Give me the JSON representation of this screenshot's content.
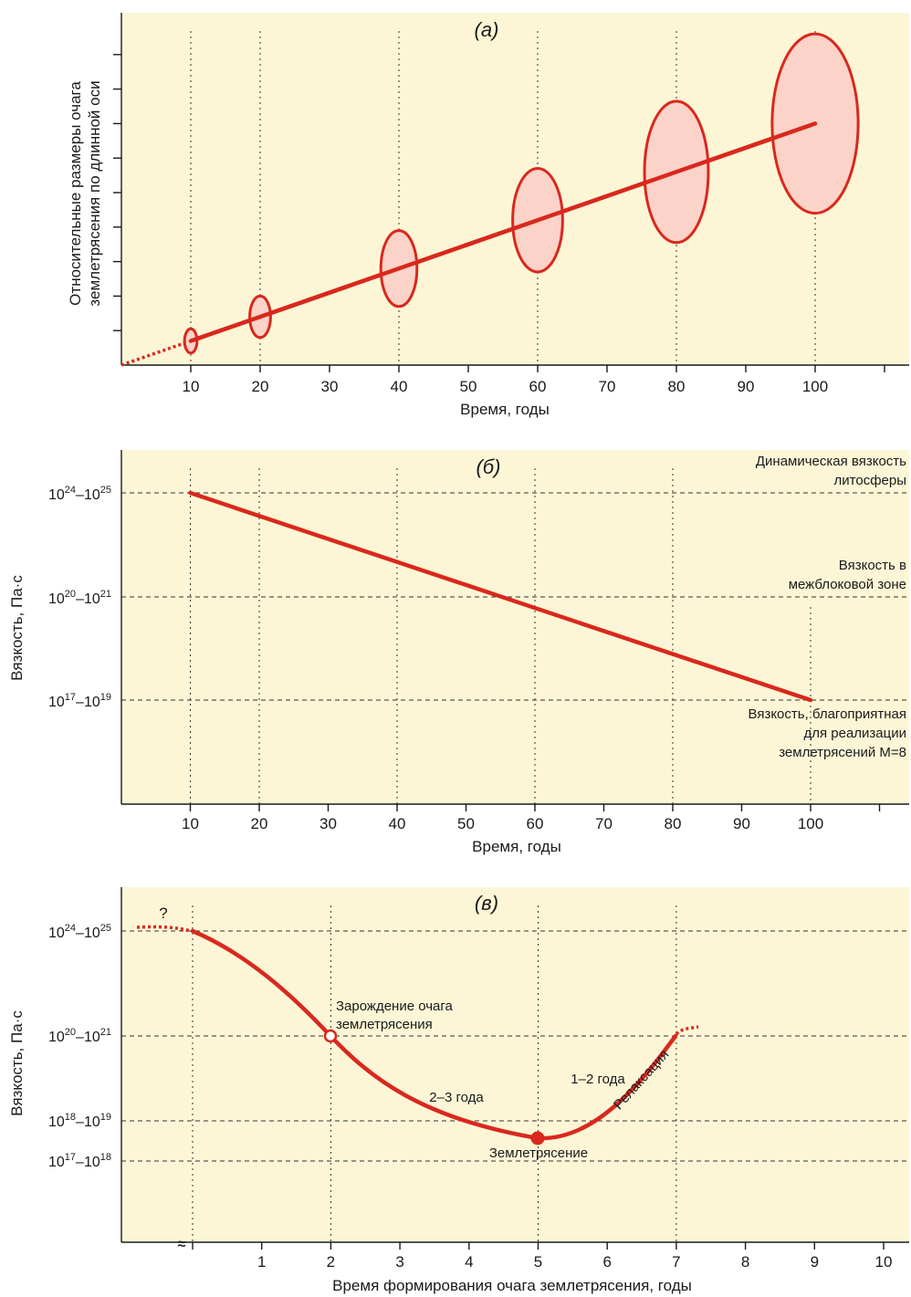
{
  "chart_data": [
    {
      "type": "line",
      "title": "(а)",
      "xlabel": "Время, годы",
      "ylabel_lines": [
        "Относительные размеры очага",
        "землетрясения по длинной оси"
      ],
      "x_ticks": [
        10,
        20,
        30,
        40,
        50,
        60,
        70,
        80,
        90,
        100
      ],
      "xlim": [
        0,
        110
      ],
      "y_ticks_count": 9,
      "grid_x": [
        10,
        20,
        40,
        60,
        80,
        100
      ],
      "series": [
        {
          "x": [
            10,
            100
          ],
          "y": [
            0.6,
            6.9
          ],
          "style": "solid",
          "color": "#d9281e"
        },
        {
          "x": [
            0,
            10
          ],
          "y": [
            -0.1,
            0.6
          ],
          "style": "dotted",
          "color": "#d9281e"
        }
      ],
      "ellipses": [
        {
          "x": 10,
          "y": 0.6,
          "rx": 0.9,
          "ry": 0.35
        },
        {
          "x": 20,
          "y": 1.3,
          "rx": 1.5,
          "ry": 0.6
        },
        {
          "x": 40,
          "y": 2.7,
          "rx": 2.6,
          "ry": 1.1
        },
        {
          "x": 60,
          "y": 4.1,
          "rx": 3.6,
          "ry": 1.5
        },
        {
          "x": 80,
          "y": 5.5,
          "rx": 4.6,
          "ry": 2.05
        },
        {
          "x": 100,
          "y": 6.9,
          "rx": 6.2,
          "ry": 2.6
        }
      ],
      "background": "#fdf6d6"
    },
    {
      "type": "line",
      "title": "(б)",
      "xlabel": "Время, годы",
      "ylabel": "Вязкость, Па·с",
      "x_ticks": [
        10,
        20,
        30,
        40,
        50,
        60,
        70,
        80,
        90,
        100
      ],
      "xlim": [
        0,
        110
      ],
      "levels": [
        {
          "base": "10",
          "exp1": "24",
          "mid": "–10",
          "exp2": "25",
          "lines": [
            "Динамическая вязкость",
            "литосферы"
          ]
        },
        {
          "base": "10",
          "exp1": "20",
          "mid": "–10",
          "exp2": "21",
          "lines": [
            "Вязкость в",
            "межблоковой зоне"
          ]
        },
        {
          "base": "10",
          "exp1": "17",
          "mid": "–10",
          "exp2": "19",
          "lines": [
            "Вязкость, благоприятная",
            "для реализации",
            "землетрясений М=8"
          ]
        }
      ],
      "grid_x": [
        10,
        20,
        40,
        60,
        80,
        100
      ],
      "series": [
        {
          "x": [
            10,
            100
          ],
          "level": [
            0,
            2
          ],
          "style": "solid",
          "color": "#d9281e"
        }
      ],
      "background": "#fdf6d6"
    },
    {
      "type": "line",
      "title": "(в)",
      "xlabel": "Время формирования очага землетрясения, годы",
      "ylabel": "Вязкость, Па·с",
      "x_ticks": [
        1,
        2,
        3,
        4,
        5,
        6,
        7,
        8,
        9,
        10
      ],
      "xlim": [
        -1,
        10.3
      ],
      "axis_break": "≈",
      "levels": [
        {
          "base": "10",
          "exp1": "24",
          "mid": "–10",
          "exp2": "25"
        },
        {
          "base": "10",
          "exp1": "20",
          "mid": "–10",
          "exp2": "21"
        },
        {
          "base": "10",
          "exp1": "18",
          "mid": "–10",
          "exp2": "19"
        },
        {
          "base": "10",
          "exp1": "17",
          "mid": "–10",
          "exp2": "18"
        }
      ],
      "grid_x": [
        0,
        2,
        5,
        7
      ],
      "points": [
        {
          "x": 2,
          "label_lines": [
            "Зарождение очага",
            "землетрясения"
          ],
          "marker": "open"
        },
        {
          "x": 5,
          "label": "Землетрясение",
          "marker": "filled"
        }
      ],
      "annotations": [
        "?",
        "2–3 года",
        "1–2 года",
        "Релаксация"
      ],
      "background": "#fdf6d6"
    }
  ]
}
